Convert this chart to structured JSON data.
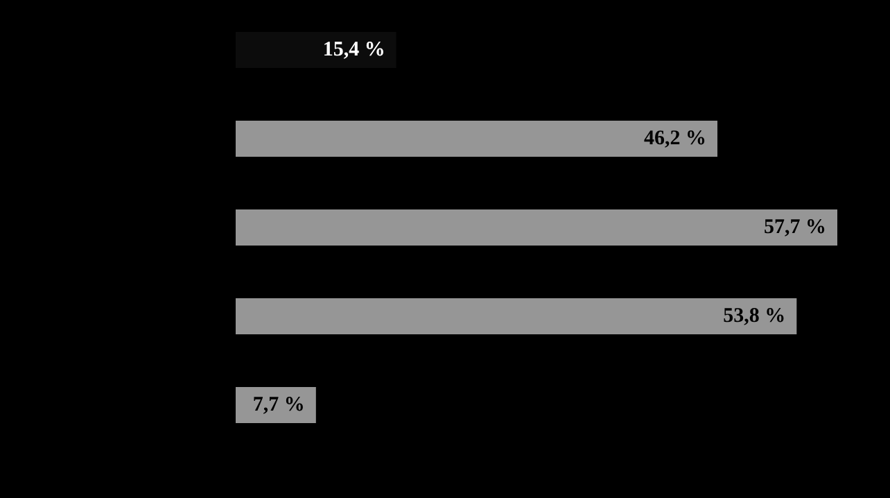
{
  "chart_data": {
    "type": "bar",
    "orientation": "horizontal",
    "categories": [
      null,
      null,
      null,
      null,
      null
    ],
    "values": [
      15.4,
      46.2,
      57.7,
      53.8,
      7.7
    ],
    "colors": [
      "#0c0c0c",
      "#969696",
      "#969696",
      "#969696",
      "#969696"
    ],
    "value_labels": [
      "15,4 %",
      "46,2 %",
      "57,7 %",
      "53,8 %",
      "7,7 %"
    ],
    "legend": false,
    "grid": false
  }
}
